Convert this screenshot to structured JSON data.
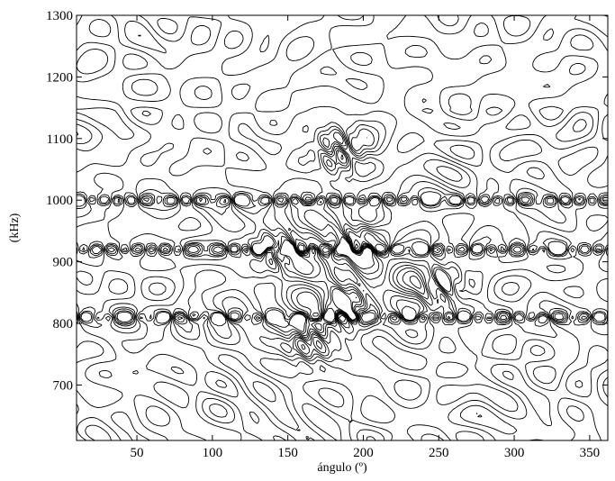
{
  "chart_data": {
    "type": "contour",
    "title": "",
    "xlabel": "ángulo (º)",
    "ylabel": "(kHz)",
    "xlim": [
      10,
      362
    ],
    "ylim": [
      610,
      1300
    ],
    "x_ticks": [
      50,
      100,
      150,
      200,
      250,
      300,
      350
    ],
    "y_ticks": [
      700,
      800,
      900,
      1000,
      1100,
      1200,
      1300
    ],
    "grid": false,
    "line_color": "#000000",
    "dense_bands_khz": [
      1000,
      920,
      810
    ],
    "hotspots": [
      {
        "x": 190,
        "y": 930
      },
      {
        "x": 145,
        "y": 920
      },
      {
        "x": 190,
        "y": 830
      },
      {
        "x": 185,
        "y": 1080
      },
      {
        "x": 165,
        "y": 770
      },
      {
        "x": 250,
        "y": 860
      }
    ]
  }
}
